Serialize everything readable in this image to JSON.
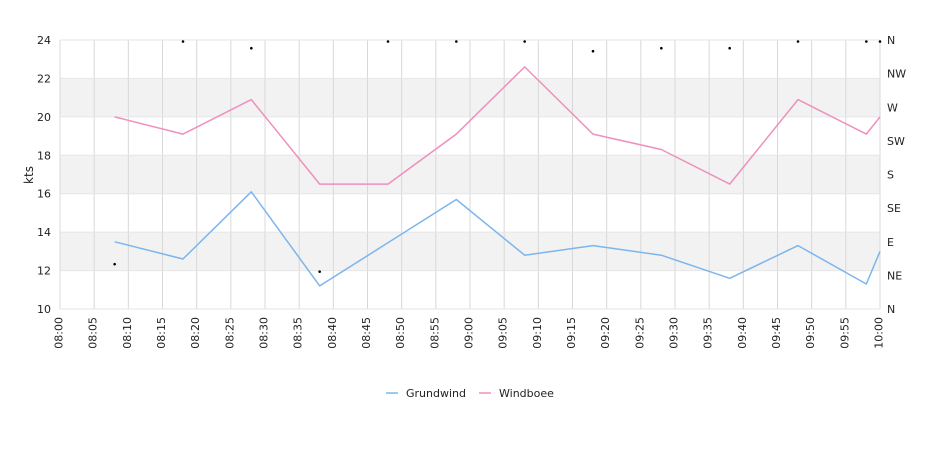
{
  "chart_data": {
    "type": "line",
    "ylabel": "kts",
    "xlabel": "",
    "ylim": [
      10,
      24
    ],
    "y_ticks": [
      10,
      12,
      14,
      16,
      18,
      20,
      22,
      24
    ],
    "x_range": [
      "08:00",
      "10:00"
    ],
    "x_tick_labels": [
      "08:00",
      "08:05",
      "08:10",
      "08:15",
      "08:20",
      "08:25",
      "08:30",
      "08:35",
      "08:40",
      "08:45",
      "08:50",
      "08:55",
      "09:00",
      "09:05",
      "09:10",
      "09:15",
      "09:20",
      "09:25",
      "09:30",
      "09:35",
      "09:40",
      "09:45",
      "09:50",
      "09:55",
      "10:00"
    ],
    "right_axis": {
      "labels": [
        "N",
        "NE",
        "E",
        "SE",
        "S",
        "SW",
        "W",
        "NW",
        "N"
      ],
      "range_degrees": [
        0,
        360
      ]
    },
    "grid": true,
    "legend_position": "bottom",
    "series": [
      {
        "name": "Grundwind",
        "color": "#7cb5ec",
        "points": [
          [
            "08:08",
            13.5
          ],
          [
            "08:18",
            12.6
          ],
          [
            "08:28",
            16.1
          ],
          [
            "08:38",
            11.2
          ],
          [
            "08:58",
            15.7
          ],
          [
            "09:08",
            12.8
          ],
          [
            "09:18",
            13.3
          ],
          [
            "09:28",
            12.8
          ],
          [
            "09:38",
            11.6
          ],
          [
            "09:48",
            13.3
          ],
          [
            "09:58",
            11.3
          ],
          [
            "10:00",
            13.0
          ]
        ]
      },
      {
        "name": "Windboee",
        "color": "#f08fbe",
        "points": [
          [
            "08:08",
            20.0
          ],
          [
            "08:18",
            19.1
          ],
          [
            "08:28",
            20.9
          ],
          [
            "08:38",
            16.5
          ],
          [
            "08:48",
            16.5
          ],
          [
            "08:58",
            19.1
          ],
          [
            "09:08",
            22.6
          ],
          [
            "09:18",
            19.1
          ],
          [
            "09:28",
            18.3
          ],
          [
            "09:38",
            16.5
          ],
          [
            "09:48",
            20.9
          ],
          [
            "09:58",
            19.1
          ],
          [
            "10:00",
            20.0
          ]
        ]
      },
      {
        "name": "",
        "type": "scatter",
        "axis": "right",
        "color": "#000000",
        "points": [
          [
            "08:08",
            60
          ],
          [
            "08:18",
            358
          ],
          [
            "08:28",
            349
          ],
          [
            "08:38",
            50
          ],
          [
            "08:48",
            358
          ],
          [
            "08:58",
            358
          ],
          [
            "09:08",
            358
          ],
          [
            "09:18",
            345
          ],
          [
            "09:28",
            349
          ],
          [
            "09:38",
            349
          ],
          [
            "09:48",
            358
          ],
          [
            "09:58",
            358
          ],
          [
            "10:00",
            358
          ]
        ]
      }
    ]
  }
}
